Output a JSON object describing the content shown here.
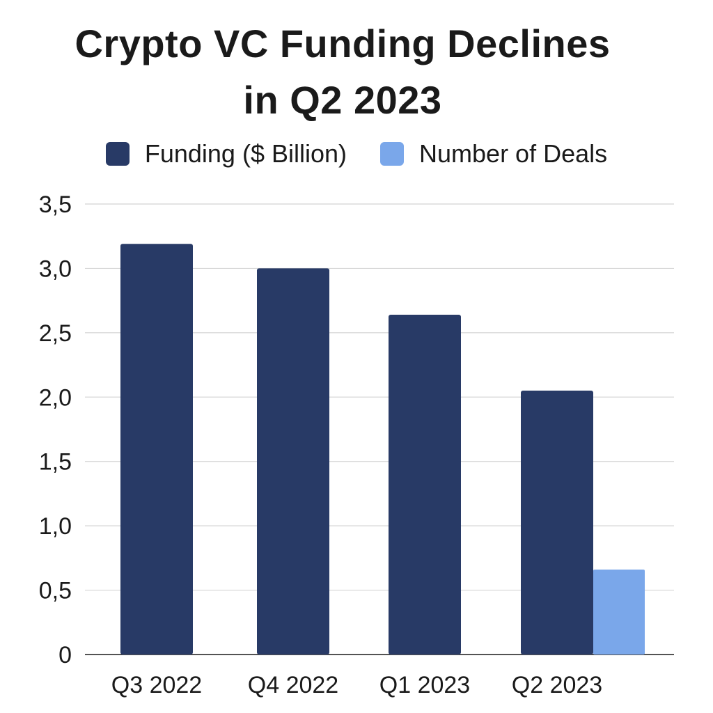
{
  "chart_data": {
    "type": "bar",
    "title_lines": [
      "Crypto VC Funding Declines",
      "in Q2 2023"
    ],
    "categories": [
      "Q3 2022",
      "Q4 2022",
      "Q1 2023",
      "Q2 2023"
    ],
    "series": [
      {
        "name": "Funding ($ Billion)",
        "color": "#283a66",
        "values": [
          3.19,
          3.0,
          2.64,
          2.05
        ]
      },
      {
        "name": "Number of Deals",
        "color": "#7aa7ea",
        "values": [
          null,
          null,
          null,
          0.66
        ]
      }
    ],
    "ylim": [
      0,
      3.5
    ],
    "yticks": [
      0,
      0.5,
      1.0,
      1.5,
      2.0,
      2.5,
      3.0,
      3.5
    ],
    "ytick_labels": [
      "0",
      "0,5",
      "1,0",
      "1,5",
      "2,0",
      "2,5",
      "3,0",
      "3,5"
    ],
    "grid": true,
    "legend_position": "top-center",
    "xlabel": "",
    "ylabel": ""
  }
}
